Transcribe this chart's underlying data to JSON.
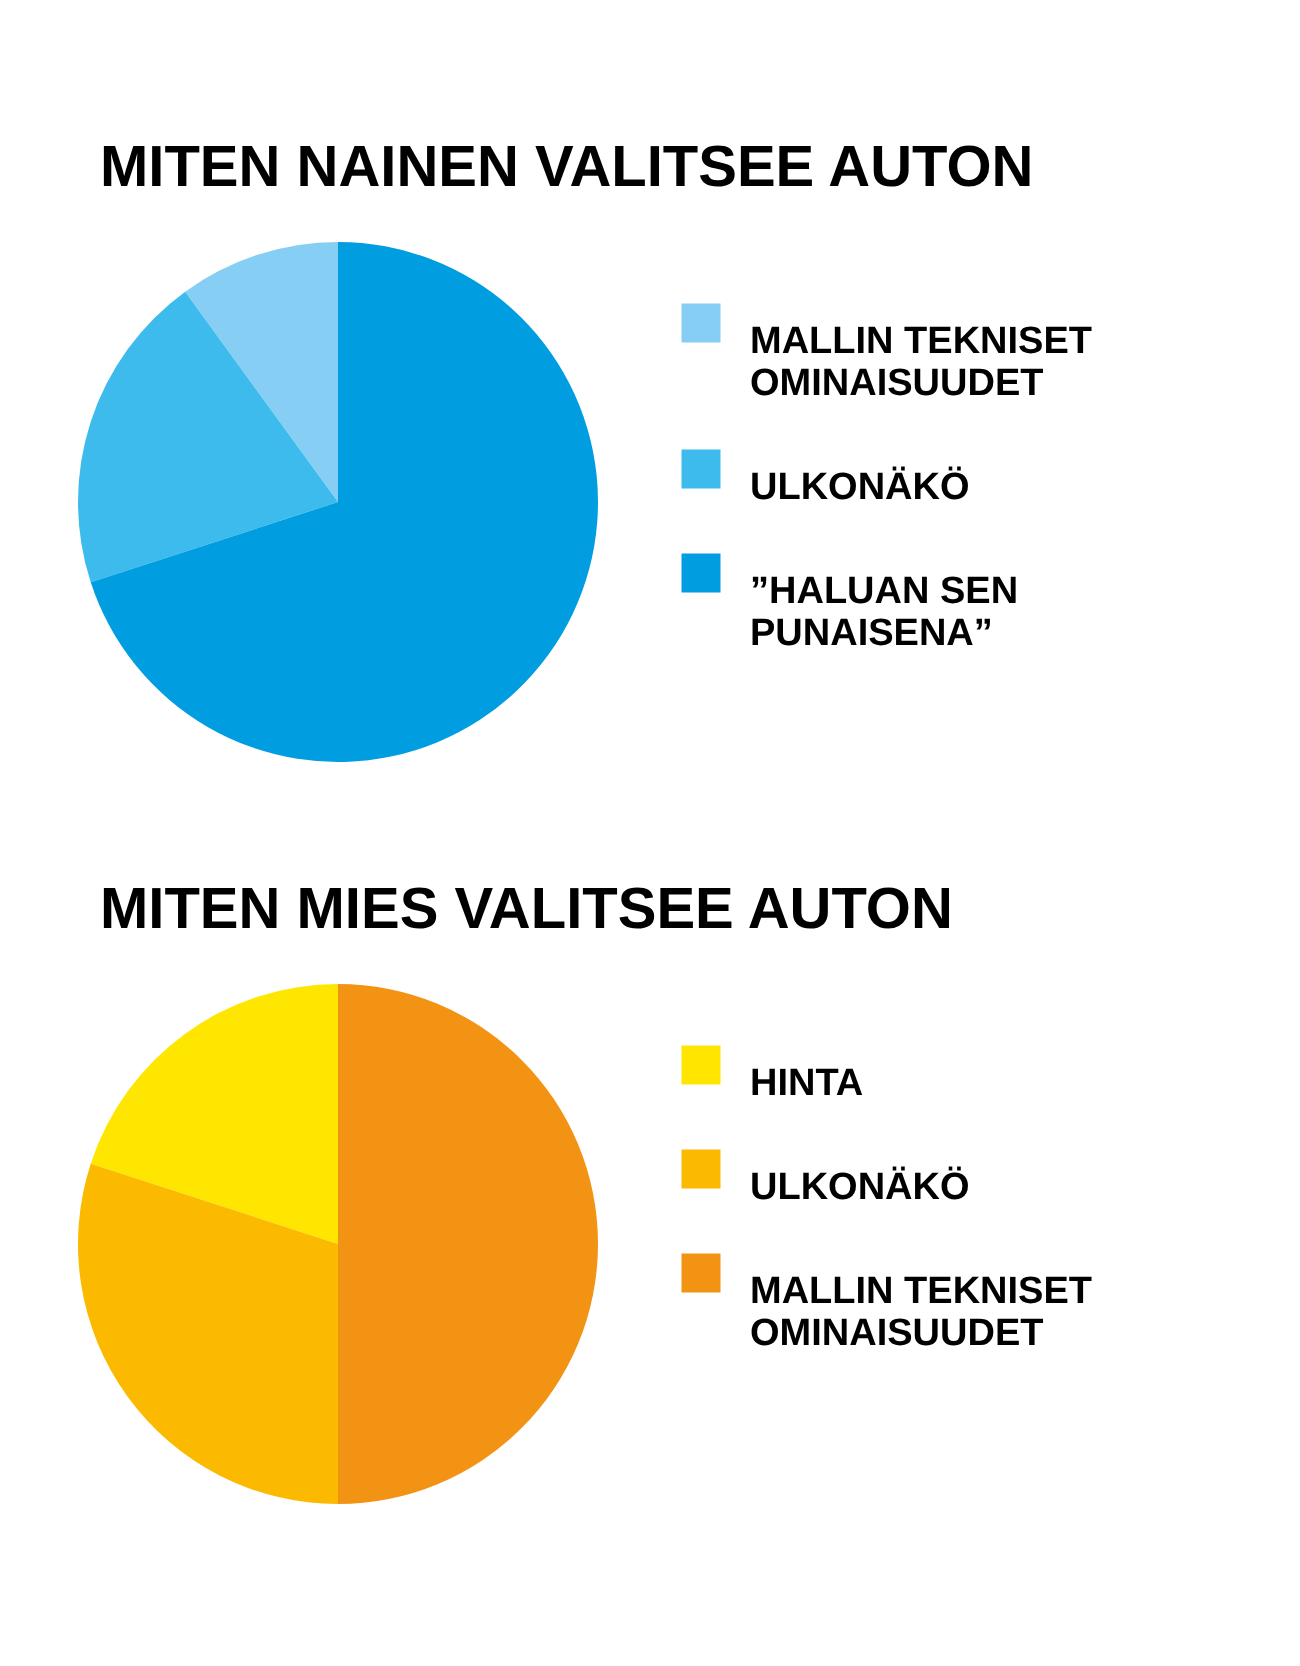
{
  "chart_data": [
    {
      "type": "pie",
      "title": "MITEN NAINEN VALITSEE AUTON",
      "categories": [
        "MALLIN TEKNISET OMINAISUUDET",
        "ULKONÄKÖ",
        "”HALUAN SEN PUNAISENA”"
      ],
      "values": [
        10,
        20,
        70
      ],
      "colors": [
        "#87cef5",
        "#3dbbec",
        "#009ee0"
      ],
      "legend": "right"
    },
    {
      "type": "pie",
      "title": "MITEN MIES VALITSEE AUTON",
      "categories": [
        "HINTA",
        "ULKONÄKÖ",
        "MALLIN TEKNISET OMINAISUUDET"
      ],
      "values": [
        20,
        30,
        50
      ],
      "colors": [
        "#ffe600",
        "#fbb900",
        "#f39314"
      ],
      "legend": "right"
    }
  ]
}
